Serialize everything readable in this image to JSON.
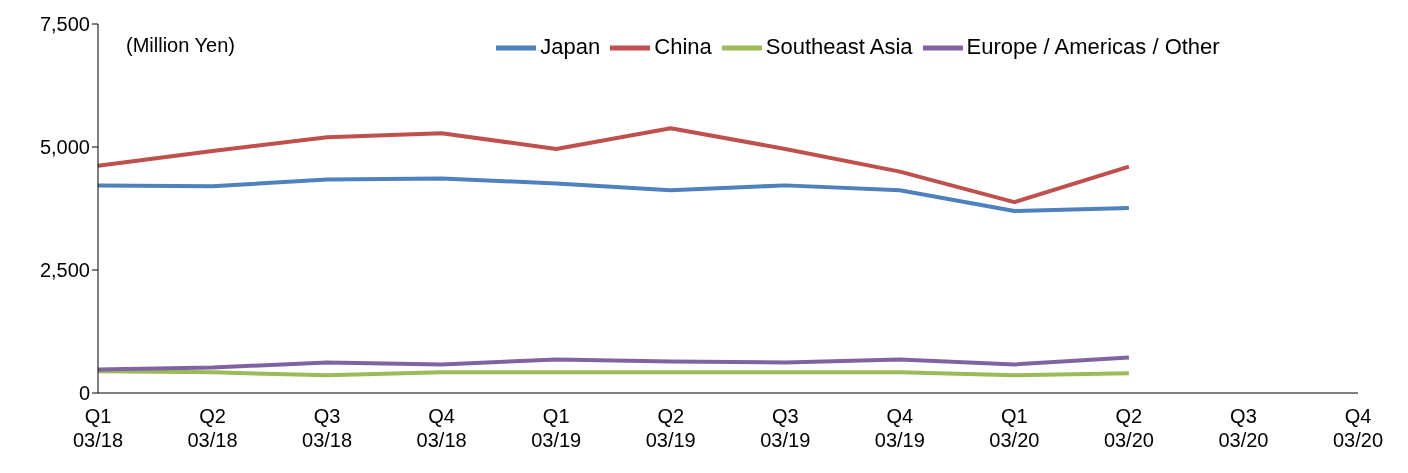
{
  "chart_data": {
    "type": "line",
    "annotations": [
      "(Million Yen)"
    ],
    "categories": [
      "Q1\n03/18",
      "Q2\n03/18",
      "Q3\n03/18",
      "Q4\n03/18",
      "Q1\n03/19",
      "Q2\n03/19",
      "Q3\n03/19",
      "Q4\n03/19",
      "Q1\n03/20",
      "Q2\n03/20",
      "Q3\n03/20",
      "Q4\n03/20"
    ],
    "series": [
      {
        "name": "Japan",
        "color": "#4f81bd",
        "values": [
          4220,
          4200,
          4340,
          4360,
          4260,
          4120,
          4220,
          4120,
          3700,
          3760,
          null,
          null
        ]
      },
      {
        "name": "China",
        "color": "#c0504d",
        "values": [
          4620,
          4920,
          5200,
          5280,
          4960,
          5380,
          4960,
          4500,
          3880,
          4600,
          null,
          null
        ]
      },
      {
        "name": "Southeast Asia",
        "color": "#9bbb59",
        "values": [
          440,
          420,
          360,
          420,
          420,
          420,
          420,
          420,
          360,
          400,
          null,
          null
        ]
      },
      {
        "name": "Europe / Americas / Other",
        "color": "#8064a2",
        "values": [
          480,
          520,
          620,
          580,
          680,
          640,
          620,
          680,
          580,
          720,
          null,
          null
        ]
      }
    ],
    "ylim": [
      0,
      7500
    ],
    "yticks": [
      0,
      {
        "value": 2500,
        "label": "2,500"
      },
      {
        "value": 5000,
        "label": "5,000"
      },
      {
        "value": 7500,
        "label": "7,500"
      }
    ],
    "grid": false,
    "legend": "top",
    "marker": "none",
    "line_style": "solid"
  }
}
